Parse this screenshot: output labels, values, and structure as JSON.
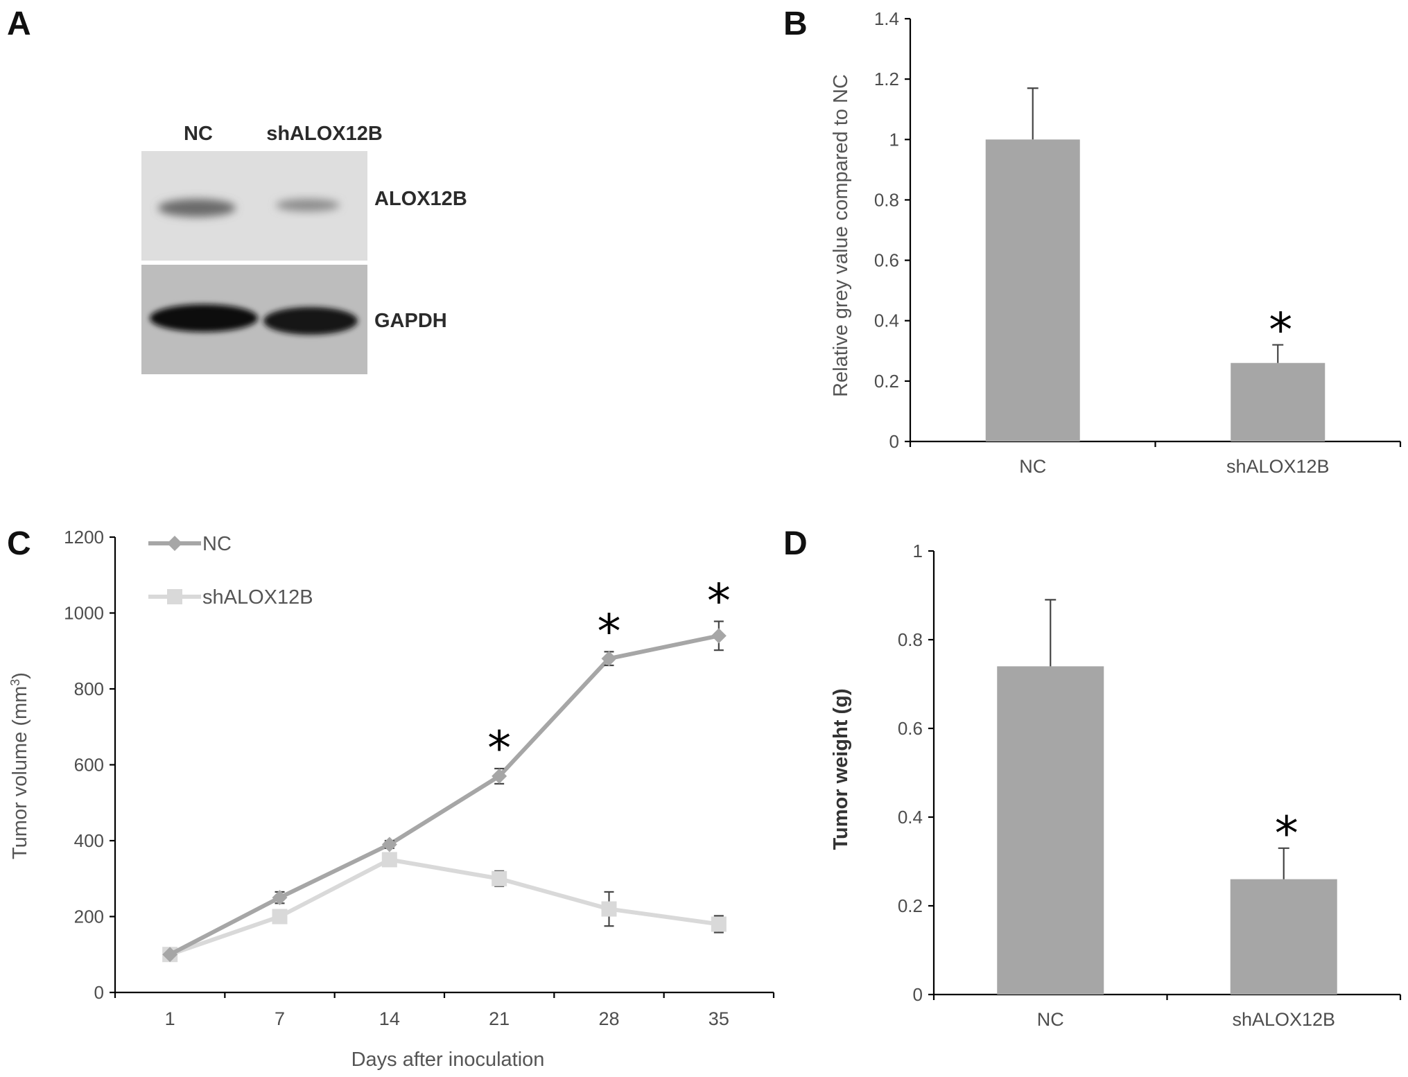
{
  "panels": {
    "A": "A",
    "B": "B",
    "C": "C",
    "D": "D"
  },
  "blot": {
    "lanes": [
      "NC",
      "shALOX12B"
    ],
    "bands": [
      "ALOX12B",
      "GAPDH"
    ]
  },
  "colors": {
    "bar": "#a6a6a6",
    "nc_line": "#a6a6a6",
    "sh_line": "#d9d9d9",
    "axis": "#000000"
  },
  "chart_data": [
    {
      "panel": "B",
      "type": "bar",
      "categories": [
        "NC",
        "shALOX12B"
      ],
      "values": [
        1.0,
        0.26
      ],
      "errors": [
        0.17,
        0.06
      ],
      "significant": [
        false,
        true
      ],
      "significance_marker": "*",
      "ylabel": "Relative grey value compared to NC",
      "xlabel": "",
      "ylim": [
        0,
        1.4
      ],
      "yticks": [
        0,
        0.2,
        0.4,
        0.6,
        0.8,
        1,
        1.2,
        1.4
      ],
      "ytick_labels": [
        "0",
        "0.2",
        "0.4",
        "0.6",
        "0.8",
        "1",
        "1.2",
        "1.4"
      ],
      "grid": false
    },
    {
      "panel": "C",
      "type": "line",
      "x": [
        1,
        7,
        14,
        21,
        28,
        35
      ],
      "x_labels": [
        "1",
        "7",
        "14",
        "21",
        "28",
        "35"
      ],
      "series": [
        {
          "name": "NC",
          "marker": "diamond",
          "values": [
            100,
            250,
            390,
            570,
            880,
            940
          ],
          "errors": [
            0,
            15,
            10,
            20,
            18,
            38
          ]
        },
        {
          "name": "shALOX12B",
          "marker": "square",
          "values": [
            100,
            200,
            350,
            300,
            220,
            180
          ],
          "errors": [
            0,
            12,
            15,
            20,
            45,
            22
          ]
        }
      ],
      "significant": [
        false,
        false,
        false,
        true,
        true,
        true
      ],
      "significance_marker": "*",
      "xlabel": "Days after inoculation",
      "ylabel": "Tumor volume (mm3)",
      "ylabel_main": "Tumor volume (mm",
      "ylabel_sup": "3",
      "ylabel_end": ")",
      "ylim": [
        0,
        1200
      ],
      "yticks": [
        0,
        200,
        400,
        600,
        800,
        1000,
        1200
      ],
      "ytick_labels": [
        "0",
        "200",
        "400",
        "600",
        "800",
        "1000",
        "1200"
      ],
      "legend_position": "top-left",
      "grid": false
    },
    {
      "panel": "D",
      "type": "bar",
      "categories": [
        "NC",
        "shALOX12B"
      ],
      "values": [
        0.74,
        0.26
      ],
      "errors": [
        0.15,
        0.07
      ],
      "significant": [
        false,
        true
      ],
      "significance_marker": "*",
      "ylabel": "Tumor weight (g)",
      "xlabel": "",
      "ylim": [
        0,
        1
      ],
      "yticks": [
        0,
        0.2,
        0.4,
        0.6,
        0.8,
        1
      ],
      "ytick_labels": [
        "0",
        "0.2",
        "0.4",
        "0.6",
        "0.8",
        "1"
      ],
      "grid": false
    }
  ]
}
